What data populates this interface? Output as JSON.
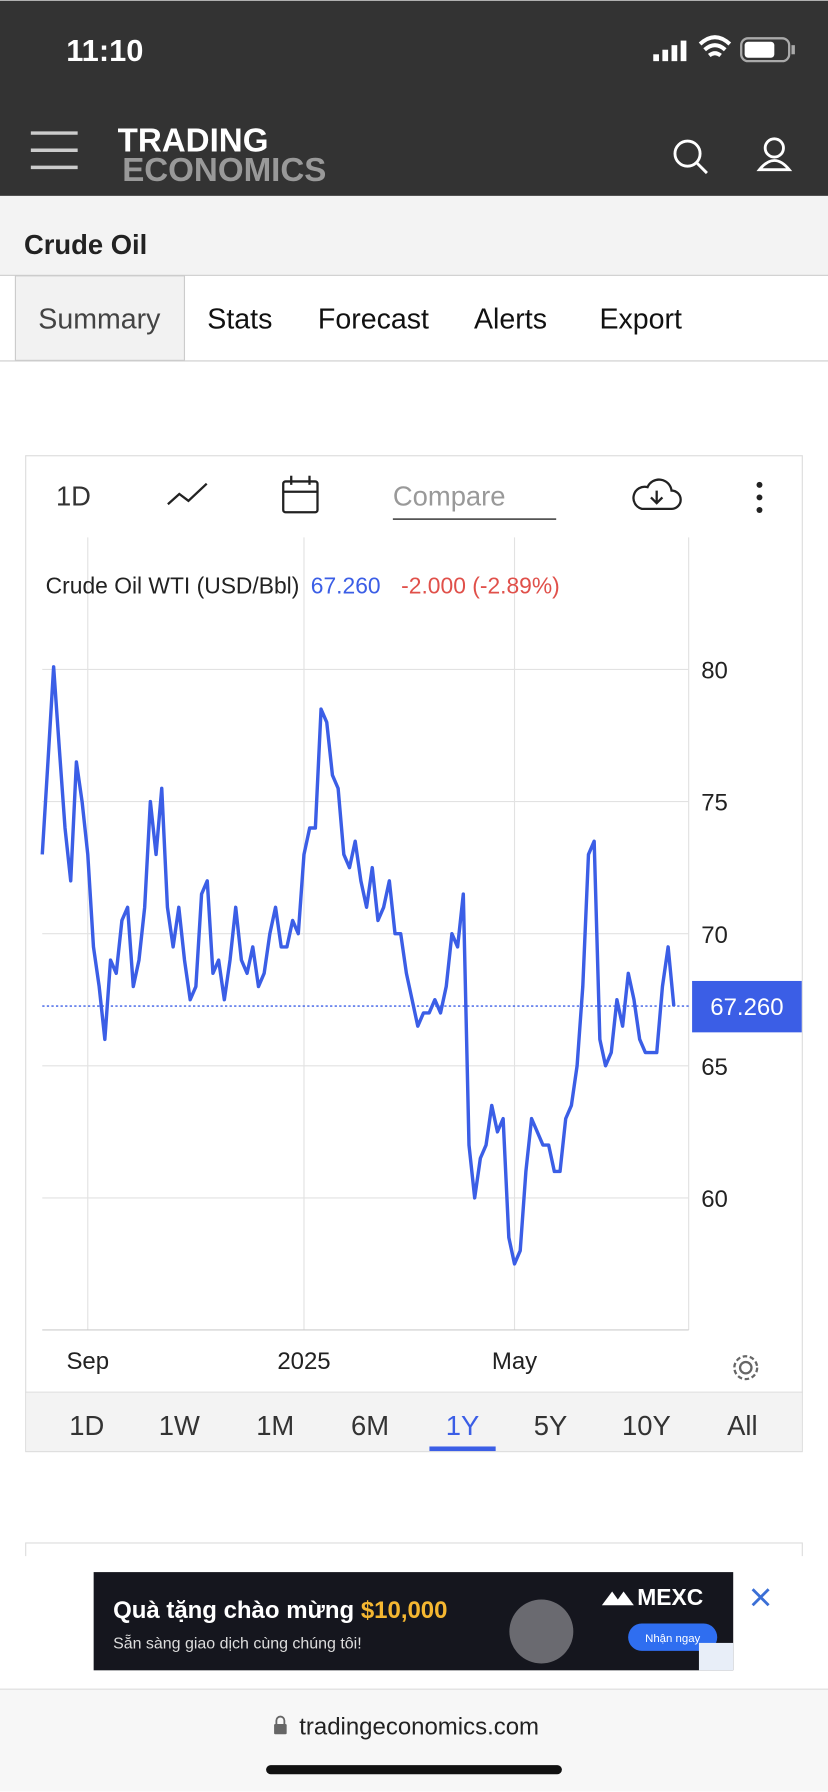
{
  "status_bar": {
    "time": "11:10"
  },
  "header": {
    "logo_top": "TRADING",
    "logo_bottom": "ECONOMICS"
  },
  "page_title": "Crude Oil",
  "tabs": [
    "Summary",
    "Stats",
    "Forecast",
    "Alerts",
    "Export"
  ],
  "active_tab": 0,
  "toolbar": {
    "period": "1D",
    "compare_placeholder": "Compare"
  },
  "chart_data": {
    "type": "line",
    "categories": [
      null,
      null,
      null,
      null,
      null,
      null,
      null,
      null,
      "Sep",
      null,
      null,
      null,
      null,
      null,
      null,
      null,
      null,
      null,
      null,
      null,
      null,
      null,
      null,
      null,
      null,
      null,
      null,
      null,
      null,
      null,
      null,
      null,
      null,
      null,
      null,
      null,
      null,
      null,
      null,
      null,
      null,
      null,
      null,
      null,
      null,
      null,
      "2025",
      null,
      null,
      null,
      null,
      null,
      null,
      null,
      null,
      null,
      null,
      null,
      null,
      null,
      null,
      null,
      null,
      null,
      null,
      null,
      null,
      null,
      null,
      null,
      null,
      null,
      null,
      null,
      null,
      null,
      null,
      null,
      null,
      null,
      null,
      null,
      null,
      "May",
      null,
      null,
      null,
      null,
      null,
      null,
      null,
      null,
      null,
      null,
      null,
      null,
      null,
      null,
      null,
      null,
      null,
      null,
      null,
      null,
      null,
      null,
      null,
      null,
      null,
      null,
      null,
      null
    ],
    "series": [
      {
        "name": "Crude Oil WTI (USD/Bbl)",
        "color": "#3b5ee6",
        "values": [
          73,
          76.5,
          80.1,
          77,
          74,
          72,
          76.5,
          75,
          73,
          69.5,
          68,
          66,
          69,
          68.5,
          70.5,
          71,
          68,
          69,
          71,
          75,
          73,
          75.5,
          71,
          69.5,
          71,
          69,
          67.5,
          68,
          71.5,
          72,
          68.5,
          69,
          67.5,
          69,
          71,
          69,
          68.5,
          69.5,
          68,
          68.5,
          70,
          71,
          69.5,
          69.5,
          70.5,
          70,
          73,
          74,
          74,
          78.5,
          78,
          76,
          75.5,
          73,
          72.5,
          73.5,
          72,
          71,
          72.5,
          70.5,
          71,
          72,
          70,
          70,
          68.5,
          67.5,
          66.5,
          67,
          67,
          67.5,
          67,
          68,
          70,
          69.5,
          71.5,
          62,
          60,
          61.5,
          62,
          63.5,
          62.5,
          63,
          58.5,
          57.5,
          58,
          61,
          63,
          62.5,
          62,
          62,
          61,
          61,
          63,
          63.5,
          65,
          68,
          73,
          73.5,
          66,
          65,
          65.5,
          67.5,
          66.5,
          68.5,
          67.5,
          66,
          65.5,
          65.5,
          65.5,
          68,
          69.5,
          67.26
        ]
      }
    ],
    "price_label": "67.260",
    "change_label": "-2.000 (-2.89%)",
    "change_color": "#e0504a",
    "current": {
      "value": 67.26,
      "label": "67.260"
    },
    "ylim": [
      55,
      85
    ],
    "yticks": [
      60,
      65,
      70,
      75,
      80
    ],
    "grid": true
  },
  "ranges": [
    "1D",
    "1W",
    "1M",
    "6M",
    "1Y",
    "5Y",
    "10Y",
    "All"
  ],
  "active_range": 4,
  "ad": {
    "headline": "Quà tặng chào mừng",
    "amount": "$10,000",
    "subtitle": "Sẵn sàng giao dịch cùng chúng tôi!",
    "brand": "MEXC",
    "cta": "Nhận ngay"
  },
  "url": "tradingeconomics.com"
}
